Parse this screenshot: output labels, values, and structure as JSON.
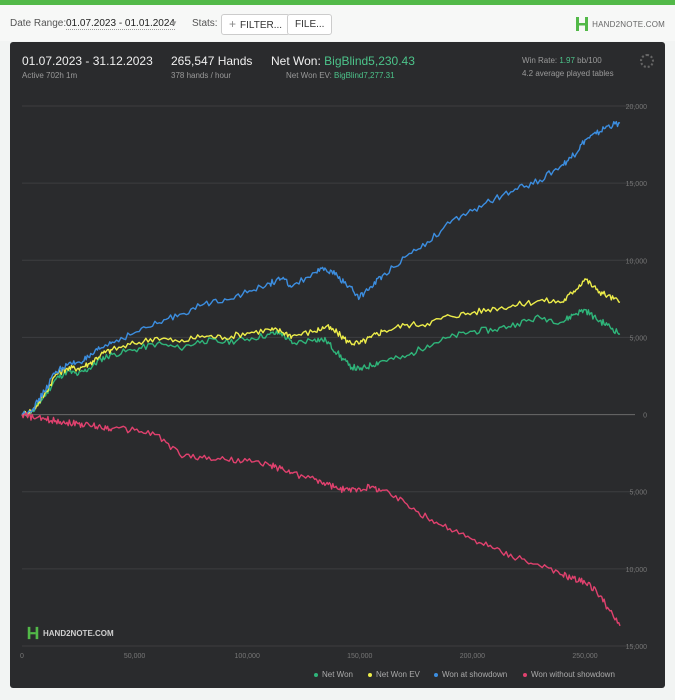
{
  "toolbar": {
    "date_range_label": "Date Range:",
    "date_range_value": "01.07.2023 - 01.01.2024",
    "stats_label": "Stats:",
    "filter_label": "FILTER...",
    "file_label": "FILE...",
    "logo_text": "HAND2NOTE.COM"
  },
  "header": {
    "period": "01.07.2023 - 31.12.2023",
    "active": "Active 702h 1m",
    "hands": "265,547 Hands",
    "hands_rate": "378 hands / hour",
    "net_won_label": "Net Won:",
    "net_won_value": "BigBlind5,230.43",
    "net_won_ev_label": "Net Won  EV:",
    "net_won_ev_value": "BigBlind7,277.31",
    "win_rate_label": "Win Rate:",
    "win_rate_value": "1.97",
    "win_rate_unit": "bb/100",
    "tables": "4.2 average played tables"
  },
  "watermark": "HAND2NOTE.COM",
  "colors": {
    "net_won": "#2fb57a",
    "net_won_ev": "#eded4a",
    "showdown": "#3c8ee0",
    "non_showdown": "#e0416e"
  },
  "chart_data": {
    "type": "line",
    "xlim": [
      0,
      265547
    ],
    "ylim": [
      -15000,
      20000
    ],
    "x_ticks": [
      0,
      50000,
      100000,
      150000,
      200000,
      250000
    ],
    "x_tick_labels": [
      "0",
      "50,000",
      "100,000",
      "150,000",
      "200,000",
      "250,000"
    ],
    "y_ticks": [
      20000,
      15000,
      10000,
      5000,
      0,
      -5000,
      -10000,
      -15000
    ],
    "y_tick_labels": [
      "20,000",
      "15,000",
      "10,000",
      "5,000",
      "0",
      "5,000",
      "10,000",
      "15,000"
    ],
    "grid": true,
    "legend_position": "bottom-right",
    "series": [
      {
        "name": "Net Won",
        "x": [
          0,
          5000,
          10000,
          15000,
          20000,
          25000,
          30000,
          35000,
          40000,
          50000,
          60000,
          70000,
          80000,
          90000,
          100000,
          110000,
          115000,
          120000,
          130000,
          135000,
          140000,
          145000,
          150000,
          155000,
          160000,
          170000,
          180000,
          190000,
          200000,
          210000,
          220000,
          230000,
          240000,
          245000,
          250000,
          255000,
          260000,
          265547
        ],
        "values": [
          0,
          200,
          1200,
          2300,
          2800,
          2600,
          3000,
          3600,
          3900,
          4200,
          4600,
          4300,
          4800,
          4700,
          4900,
          5200,
          5300,
          4600,
          4900,
          4800,
          4000,
          3200,
          2900,
          3200,
          3500,
          3700,
          4500,
          5000,
          5400,
          5500,
          5900,
          6300,
          6000,
          6500,
          6800,
          6200,
          5800,
          5230
        ]
      },
      {
        "name": "Net Won  EV",
        "x": [
          0,
          5000,
          10000,
          15000,
          20000,
          25000,
          30000,
          35000,
          40000,
          50000,
          60000,
          70000,
          80000,
          90000,
          100000,
          110000,
          115000,
          120000,
          130000,
          135000,
          140000,
          145000,
          150000,
          155000,
          160000,
          170000,
          180000,
          190000,
          200000,
          210000,
          220000,
          230000,
          240000,
          245000,
          250000,
          255000,
          260000,
          265547
        ],
        "values": [
          0,
          300,
          1300,
          2600,
          3000,
          3000,
          3300,
          3900,
          4200,
          4600,
          5000,
          4700,
          5100,
          5000,
          5300,
          5500,
          5400,
          5100,
          5400,
          5700,
          5300,
          4700,
          4600,
          5000,
          5400,
          5800,
          5900,
          6400,
          6600,
          6900,
          7100,
          7400,
          7300,
          8000,
          8800,
          8100,
          7700,
          7277
        ]
      },
      {
        "name": "Won at showdown",
        "x": [
          0,
          5000,
          10000,
          15000,
          20000,
          25000,
          30000,
          35000,
          40000,
          50000,
          60000,
          70000,
          80000,
          90000,
          100000,
          110000,
          115000,
          120000,
          130000,
          135000,
          140000,
          145000,
          150000,
          155000,
          160000,
          170000,
          180000,
          190000,
          200000,
          210000,
          220000,
          230000,
          240000,
          245000,
          250000,
          255000,
          260000,
          265547
        ],
        "values": [
          0,
          400,
          1500,
          2800,
          3200,
          3400,
          3700,
          4300,
          4700,
          5300,
          5900,
          6500,
          7100,
          7500,
          7900,
          8500,
          8800,
          8300,
          9200,
          9400,
          9000,
          8300,
          7600,
          8300,
          9000,
          10200,
          11200,
          12400,
          13200,
          14000,
          14600,
          15200,
          16200,
          16800,
          17800,
          18200,
          18700,
          18900
        ]
      },
      {
        "name": "Won without showdown",
        "x": [
          0,
          5000,
          10000,
          15000,
          20000,
          25000,
          30000,
          35000,
          40000,
          50000,
          60000,
          70000,
          80000,
          90000,
          100000,
          110000,
          115000,
          120000,
          130000,
          135000,
          140000,
          145000,
          150000,
          155000,
          160000,
          170000,
          180000,
          190000,
          200000,
          210000,
          220000,
          230000,
          240000,
          245000,
          250000,
          255000,
          260000,
          265547
        ],
        "values": [
          0,
          -200,
          -300,
          -400,
          -500,
          -600,
          -700,
          -800,
          -900,
          -1000,
          -1300,
          -2600,
          -2800,
          -2900,
          -3000,
          -3300,
          -3500,
          -3800,
          -4200,
          -4500,
          -4800,
          -4900,
          -4800,
          -4700,
          -4900,
          -5700,
          -6700,
          -7400,
          -8100,
          -8700,
          -9300,
          -9800,
          -10400,
          -10600,
          -10900,
          -11400,
          -12500,
          -13700
        ]
      }
    ]
  }
}
